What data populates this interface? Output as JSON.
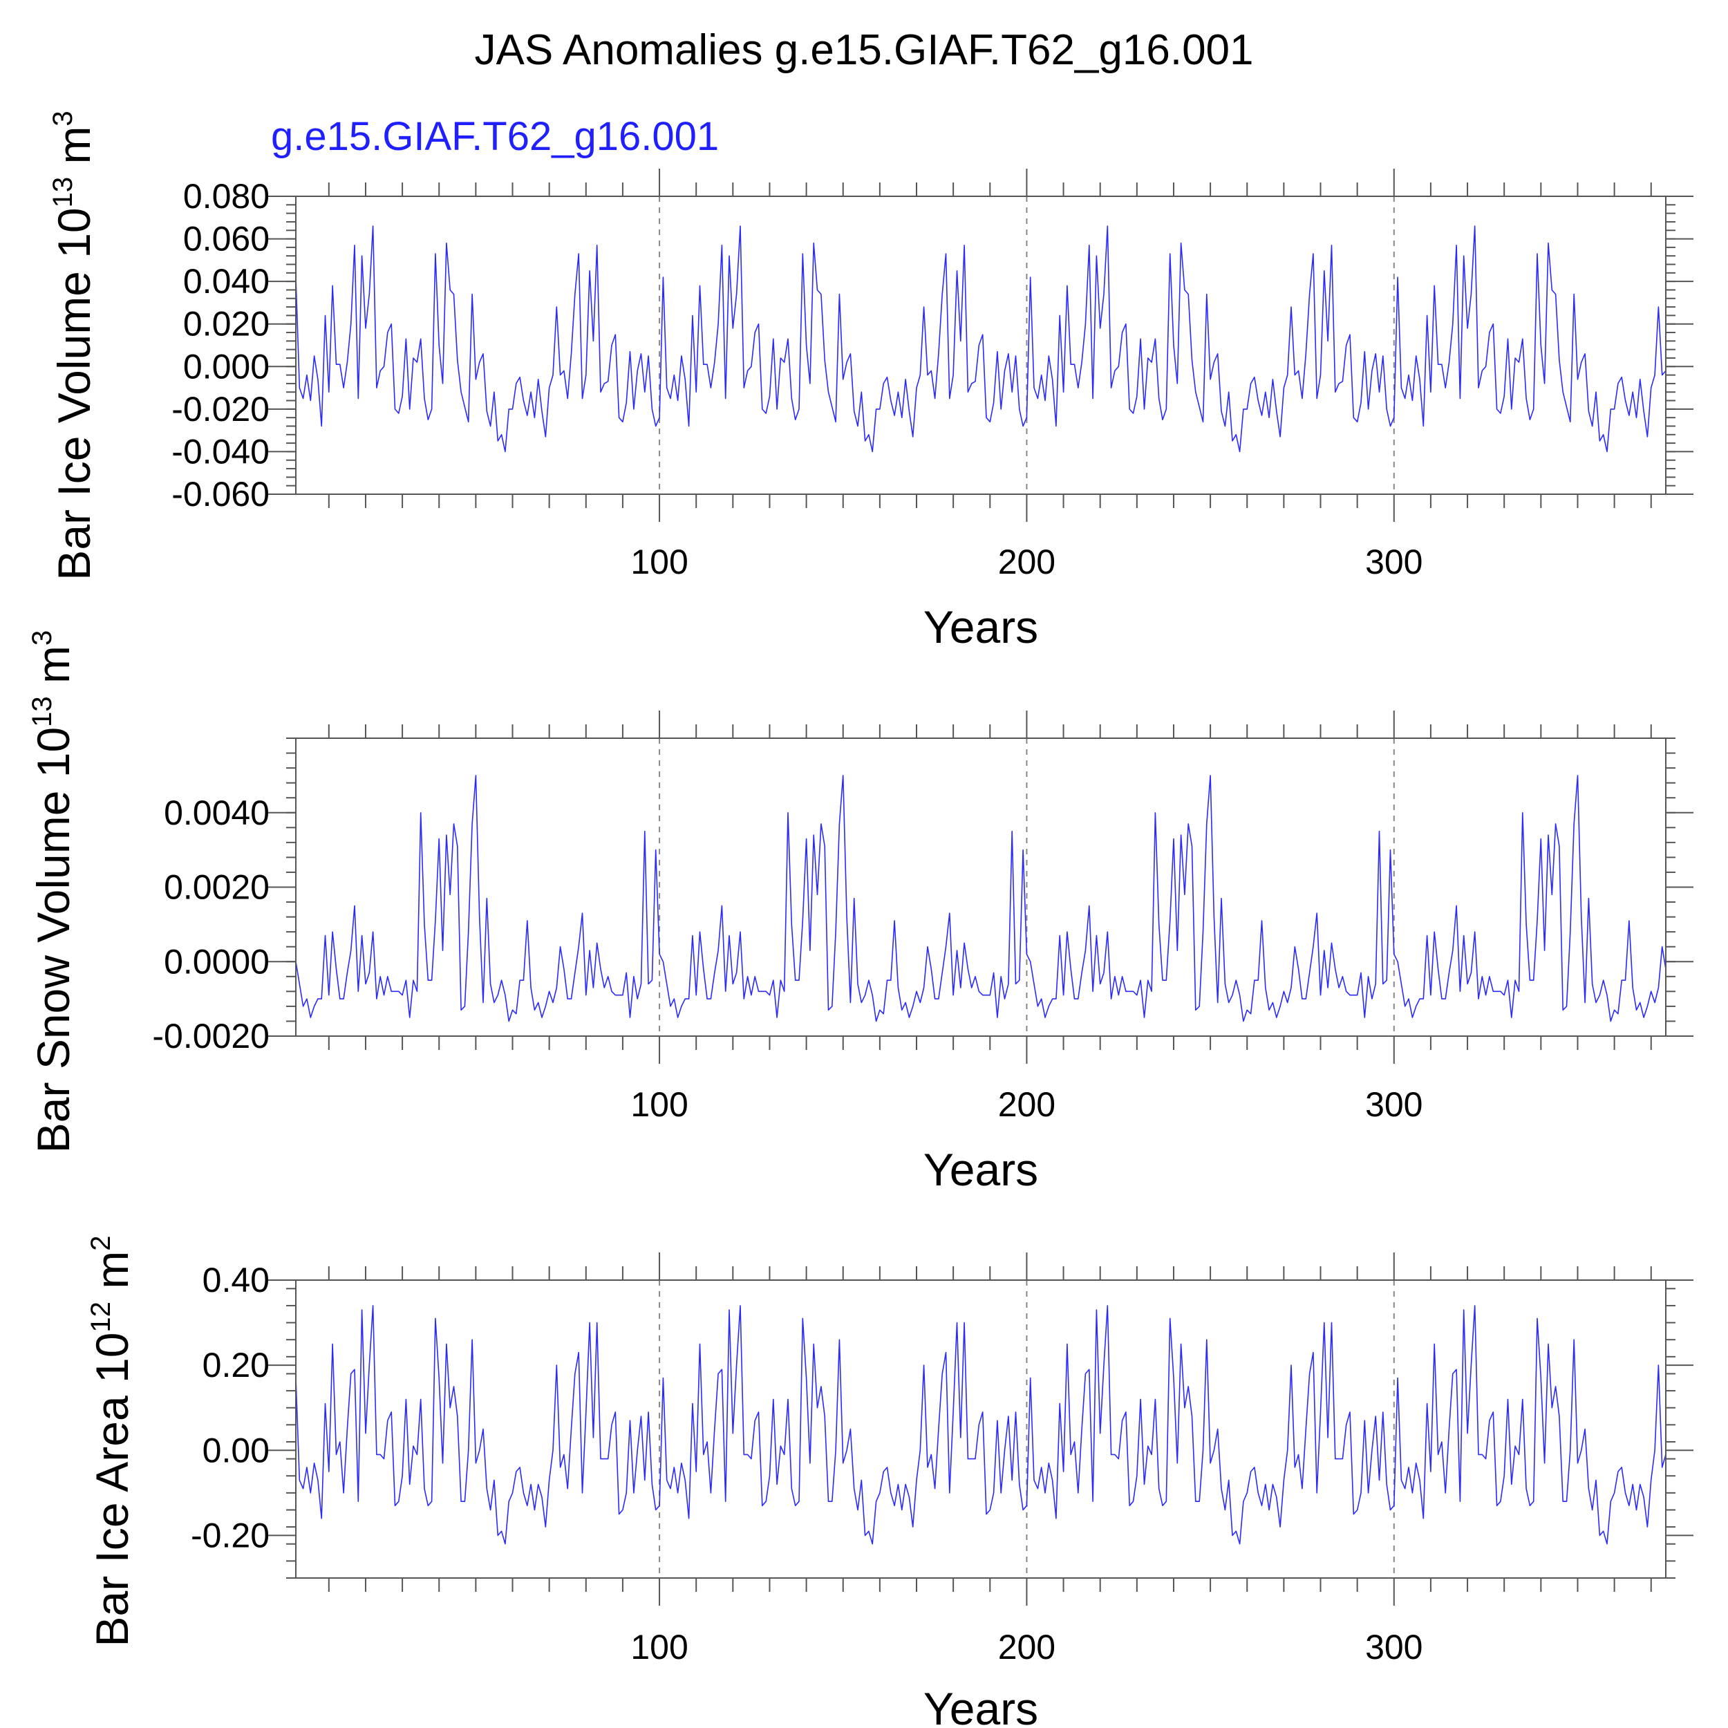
{
  "title": "JAS Anomalies g.e15.GIAF.T62_g16.001",
  "subtitle": "g.e15.GIAF.T62_g16.001",
  "colors": {
    "series": "#2a2aff",
    "subtitle": "#1f1fff",
    "reference_lines": "#888888"
  },
  "chart_data": [
    {
      "type": "line",
      "title": "",
      "xlabel": "Years",
      "ylabel_prefix": "Bar Ice Volume 10",
      "ylabel_exp": "13",
      "ylabel_unit": " m",
      "ylabel_unit_exp": "3",
      "xlim": [
        1,
        374
      ],
      "ylim": [
        -0.06,
        0.08
      ],
      "x_ticks": [
        100,
        200,
        300
      ],
      "x_tick_labels": [
        "100",
        "200",
        "300"
      ],
      "y_ticks": [
        -0.06,
        -0.04,
        -0.02,
        0.0,
        0.02,
        0.04,
        0.06,
        0.08
      ],
      "y_tick_labels": [
        "-0.060",
        "-0.040",
        "-0.020",
        "0.000",
        "0.020",
        "0.040",
        "0.060",
        "0.080"
      ],
      "reference_lines_x": [
        100,
        200,
        300
      ],
      "grid": false,
      "x_start": 1,
      "series": [
        {
          "values": [
            0.042,
            -0.01,
            -0.015,
            -0.004,
            -0.016,
            0.005,
            -0.006,
            -0.028,
            0.024,
            -0.012,
            0.038,
            0.001,
            0.001,
            -0.01,
            0.002,
            0.02,
            0.057,
            -0.015,
            0.052,
            0.018,
            0.034,
            0.066,
            -0.01,
            -0.002,
            0.0,
            0.016,
            0.02,
            -0.02,
            -0.022,
            -0.014,
            0.013,
            -0.02,
            0.004,
            0.002,
            0.013,
            -0.015,
            -0.025,
            -0.02,
            0.053,
            0.01,
            -0.008,
            0.058,
            0.036,
            0.034,
            0.003,
            -0.012,
            -0.019,
            -0.026,
            0.034,
            -0.006,
            0.002,
            0.006,
            -0.021,
            -0.028,
            -0.012,
            -0.035,
            -0.032,
            -0.04,
            -0.02,
            -0.02,
            -0.008,
            -0.005,
            -0.016,
            -0.023,
            -0.012,
            -0.024,
            -0.006,
            -0.021,
            -0.033,
            -0.01,
            -0.004,
            0.028,
            -0.004,
            -0.002,
            -0.015,
            0.006,
            0.034,
            0.053,
            -0.015,
            -0.004,
            0.045,
            0.012,
            0.057,
            -0.012,
            -0.008,
            -0.007,
            0.01,
            0.015,
            -0.024,
            -0.026,
            -0.017,
            0.007,
            -0.02,
            -0.002,
            0.006,
            -0.012,
            0.005,
            -0.02,
            -0.028,
            -0.024
          ],
          "period": 100
        }
      ]
    },
    {
      "type": "line",
      "title": "",
      "xlabel": "Years",
      "ylabel_prefix": "Bar Snow Volume 10",
      "ylabel_exp": "13",
      "ylabel_unit": " m",
      "ylabel_unit_exp": "3",
      "xlim": [
        1,
        374
      ],
      "ylim": [
        -0.002,
        0.006
      ],
      "x_ticks": [
        100,
        200,
        300
      ],
      "x_tick_labels": [
        "100",
        "200",
        "300"
      ],
      "y_ticks": [
        -0.002,
        0.0,
        0.002,
        0.004
      ],
      "y_tick_labels": [
        "-0.0020",
        "0.0000",
        "0.0020",
        "0.0040"
      ],
      "reference_lines_x": [
        100,
        200,
        300
      ],
      "grid": false,
      "x_start": 1,
      "series": [
        {
          "values": [
            0.0,
            -0.0006,
            -0.0012,
            -0.001,
            -0.0015,
            -0.0012,
            -0.001,
            -0.001,
            0.0007,
            -0.0009,
            0.0008,
            -0.0002,
            -0.001,
            -0.001,
            -0.0003,
            0.0003,
            0.0015,
            -0.0008,
            0.0007,
            -0.0006,
            -0.0003,
            0.0008,
            -0.001,
            -0.0004,
            -0.0009,
            -0.0004,
            -0.0008,
            -0.0008,
            -0.0008,
            -0.0009,
            -0.0005,
            -0.0015,
            -0.0005,
            -0.0008,
            0.004,
            0.001,
            -0.0005,
            -0.0005,
            0.0011,
            0.0033,
            0.0003,
            0.0034,
            0.0018,
            0.0037,
            0.0031,
            -0.0013,
            -0.0012,
            0.0008,
            0.0037,
            0.005,
            0.0012,
            -0.0011,
            0.0017,
            -0.0006,
            -0.0011,
            -0.0009,
            -0.0005,
            -0.0009,
            -0.0016,
            -0.0013,
            -0.0014,
            -0.0005,
            -0.0005,
            0.0011,
            -0.0007,
            -0.0013,
            -0.0011,
            -0.0015,
            -0.0012,
            -0.0008,
            -0.0011,
            -0.0007,
            0.0004,
            -0.0002,
            -0.001,
            -0.001,
            -0.0003,
            0.0004,
            0.0013,
            -0.0009,
            0.0003,
            -0.0007,
            0.0005,
            -0.0002,
            -0.0007,
            -0.0004,
            -0.0008,
            -0.0009,
            -0.0009,
            -0.0009,
            -0.0003,
            -0.0015,
            -0.0004,
            -0.001,
            -0.0006,
            0.0035,
            -0.0006,
            -0.0005,
            0.003,
            0.0002
          ],
          "period": 100
        }
      ]
    },
    {
      "type": "line",
      "title": "",
      "xlabel": "Years",
      "ylabel_prefix": "Bar Ice Area 10",
      "ylabel_exp": "12",
      "ylabel_unit": " m",
      "ylabel_unit_exp": "2",
      "xlim": [
        1,
        374
      ],
      "ylim": [
        -0.3,
        0.4
      ],
      "x_ticks": [
        100,
        200,
        300
      ],
      "x_tick_labels": [
        "100",
        "200",
        "300"
      ],
      "y_ticks": [
        -0.2,
        0.0,
        0.2,
        0.4
      ],
      "y_tick_labels": [
        "-0.20",
        "0.00",
        "0.20",
        "0.40"
      ],
      "reference_lines_x": [
        100,
        200,
        300
      ],
      "grid": false,
      "x_start": 1,
      "series": [
        {
          "values": [
            0.17,
            -0.07,
            -0.09,
            -0.04,
            -0.1,
            -0.03,
            -0.07,
            -0.16,
            0.11,
            -0.05,
            0.25,
            -0.01,
            0.02,
            -0.1,
            0.05,
            0.18,
            0.19,
            -0.12,
            0.33,
            0.04,
            0.2,
            0.34,
            -0.01,
            -0.01,
            -0.02,
            0.07,
            0.09,
            -0.13,
            -0.12,
            -0.06,
            0.12,
            -0.08,
            0.01,
            -0.01,
            0.12,
            -0.09,
            -0.13,
            -0.12,
            0.31,
            0.17,
            -0.03,
            0.25,
            0.1,
            0.15,
            0.08,
            -0.12,
            -0.12,
            0.0,
            0.26,
            -0.03,
            0.0,
            0.05,
            -0.09,
            -0.14,
            -0.07,
            -0.2,
            -0.19,
            -0.22,
            -0.12,
            -0.1,
            -0.05,
            -0.04,
            -0.1,
            -0.13,
            -0.08,
            -0.14,
            -0.08,
            -0.11,
            -0.18,
            -0.07,
            0.0,
            0.2,
            -0.04,
            -0.01,
            -0.09,
            0.05,
            0.18,
            0.23,
            -0.1,
            0.09,
            0.3,
            0.03,
            0.3,
            -0.02,
            -0.02,
            -0.02,
            0.06,
            0.09,
            -0.15,
            -0.14,
            -0.1,
            0.07,
            -0.1,
            0.0,
            0.08,
            -0.07,
            0.09,
            -0.08,
            -0.14,
            -0.13
          ],
          "period": 100
        }
      ]
    }
  ]
}
